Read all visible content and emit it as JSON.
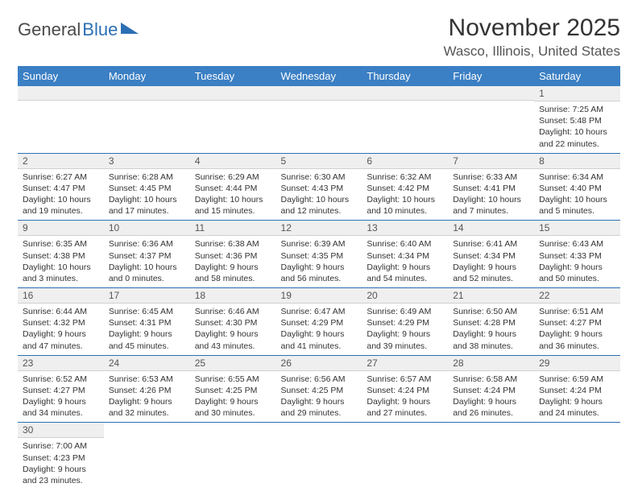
{
  "logo": {
    "word1": "General",
    "word2": "Blue"
  },
  "title": "November 2025",
  "location": "Wasco, Illinois, United States",
  "colors": {
    "header_bg": "#3b7fc4",
    "border": "#2c6fb5",
    "daynum_bg": "#efefef",
    "text": "#333333"
  },
  "day_headers": [
    "Sunday",
    "Monday",
    "Tuesday",
    "Wednesday",
    "Thursday",
    "Friday",
    "Saturday"
  ],
  "weeks": [
    [
      null,
      null,
      null,
      null,
      null,
      null,
      {
        "n": "1",
        "sr": "Sunrise: 7:25 AM",
        "ss": "Sunset: 5:48 PM",
        "dl": "Daylight: 10 hours and 22 minutes."
      }
    ],
    [
      {
        "n": "2",
        "sr": "Sunrise: 6:27 AM",
        "ss": "Sunset: 4:47 PM",
        "dl": "Daylight: 10 hours and 19 minutes."
      },
      {
        "n": "3",
        "sr": "Sunrise: 6:28 AM",
        "ss": "Sunset: 4:45 PM",
        "dl": "Daylight: 10 hours and 17 minutes."
      },
      {
        "n": "4",
        "sr": "Sunrise: 6:29 AM",
        "ss": "Sunset: 4:44 PM",
        "dl": "Daylight: 10 hours and 15 minutes."
      },
      {
        "n": "5",
        "sr": "Sunrise: 6:30 AM",
        "ss": "Sunset: 4:43 PM",
        "dl": "Daylight: 10 hours and 12 minutes."
      },
      {
        "n": "6",
        "sr": "Sunrise: 6:32 AM",
        "ss": "Sunset: 4:42 PM",
        "dl": "Daylight: 10 hours and 10 minutes."
      },
      {
        "n": "7",
        "sr": "Sunrise: 6:33 AM",
        "ss": "Sunset: 4:41 PM",
        "dl": "Daylight: 10 hours and 7 minutes."
      },
      {
        "n": "8",
        "sr": "Sunrise: 6:34 AM",
        "ss": "Sunset: 4:40 PM",
        "dl": "Daylight: 10 hours and 5 minutes."
      }
    ],
    [
      {
        "n": "9",
        "sr": "Sunrise: 6:35 AM",
        "ss": "Sunset: 4:38 PM",
        "dl": "Daylight: 10 hours and 3 minutes."
      },
      {
        "n": "10",
        "sr": "Sunrise: 6:36 AM",
        "ss": "Sunset: 4:37 PM",
        "dl": "Daylight: 10 hours and 0 minutes."
      },
      {
        "n": "11",
        "sr": "Sunrise: 6:38 AM",
        "ss": "Sunset: 4:36 PM",
        "dl": "Daylight: 9 hours and 58 minutes."
      },
      {
        "n": "12",
        "sr": "Sunrise: 6:39 AM",
        "ss": "Sunset: 4:35 PM",
        "dl": "Daylight: 9 hours and 56 minutes."
      },
      {
        "n": "13",
        "sr": "Sunrise: 6:40 AM",
        "ss": "Sunset: 4:34 PM",
        "dl": "Daylight: 9 hours and 54 minutes."
      },
      {
        "n": "14",
        "sr": "Sunrise: 6:41 AM",
        "ss": "Sunset: 4:34 PM",
        "dl": "Daylight: 9 hours and 52 minutes."
      },
      {
        "n": "15",
        "sr": "Sunrise: 6:43 AM",
        "ss": "Sunset: 4:33 PM",
        "dl": "Daylight: 9 hours and 50 minutes."
      }
    ],
    [
      {
        "n": "16",
        "sr": "Sunrise: 6:44 AM",
        "ss": "Sunset: 4:32 PM",
        "dl": "Daylight: 9 hours and 47 minutes."
      },
      {
        "n": "17",
        "sr": "Sunrise: 6:45 AM",
        "ss": "Sunset: 4:31 PM",
        "dl": "Daylight: 9 hours and 45 minutes."
      },
      {
        "n": "18",
        "sr": "Sunrise: 6:46 AM",
        "ss": "Sunset: 4:30 PM",
        "dl": "Daylight: 9 hours and 43 minutes."
      },
      {
        "n": "19",
        "sr": "Sunrise: 6:47 AM",
        "ss": "Sunset: 4:29 PM",
        "dl": "Daylight: 9 hours and 41 minutes."
      },
      {
        "n": "20",
        "sr": "Sunrise: 6:49 AM",
        "ss": "Sunset: 4:29 PM",
        "dl": "Daylight: 9 hours and 39 minutes."
      },
      {
        "n": "21",
        "sr": "Sunrise: 6:50 AM",
        "ss": "Sunset: 4:28 PM",
        "dl": "Daylight: 9 hours and 38 minutes."
      },
      {
        "n": "22",
        "sr": "Sunrise: 6:51 AM",
        "ss": "Sunset: 4:27 PM",
        "dl": "Daylight: 9 hours and 36 minutes."
      }
    ],
    [
      {
        "n": "23",
        "sr": "Sunrise: 6:52 AM",
        "ss": "Sunset: 4:27 PM",
        "dl": "Daylight: 9 hours and 34 minutes."
      },
      {
        "n": "24",
        "sr": "Sunrise: 6:53 AM",
        "ss": "Sunset: 4:26 PM",
        "dl": "Daylight: 9 hours and 32 minutes."
      },
      {
        "n": "25",
        "sr": "Sunrise: 6:55 AM",
        "ss": "Sunset: 4:25 PM",
        "dl": "Daylight: 9 hours and 30 minutes."
      },
      {
        "n": "26",
        "sr": "Sunrise: 6:56 AM",
        "ss": "Sunset: 4:25 PM",
        "dl": "Daylight: 9 hours and 29 minutes."
      },
      {
        "n": "27",
        "sr": "Sunrise: 6:57 AM",
        "ss": "Sunset: 4:24 PM",
        "dl": "Daylight: 9 hours and 27 minutes."
      },
      {
        "n": "28",
        "sr": "Sunrise: 6:58 AM",
        "ss": "Sunset: 4:24 PM",
        "dl": "Daylight: 9 hours and 26 minutes."
      },
      {
        "n": "29",
        "sr": "Sunrise: 6:59 AM",
        "ss": "Sunset: 4:24 PM",
        "dl": "Daylight: 9 hours and 24 minutes."
      }
    ],
    [
      {
        "n": "30",
        "sr": "Sunrise: 7:00 AM",
        "ss": "Sunset: 4:23 PM",
        "dl": "Daylight: 9 hours and 23 minutes."
      },
      null,
      null,
      null,
      null,
      null,
      null
    ]
  ]
}
